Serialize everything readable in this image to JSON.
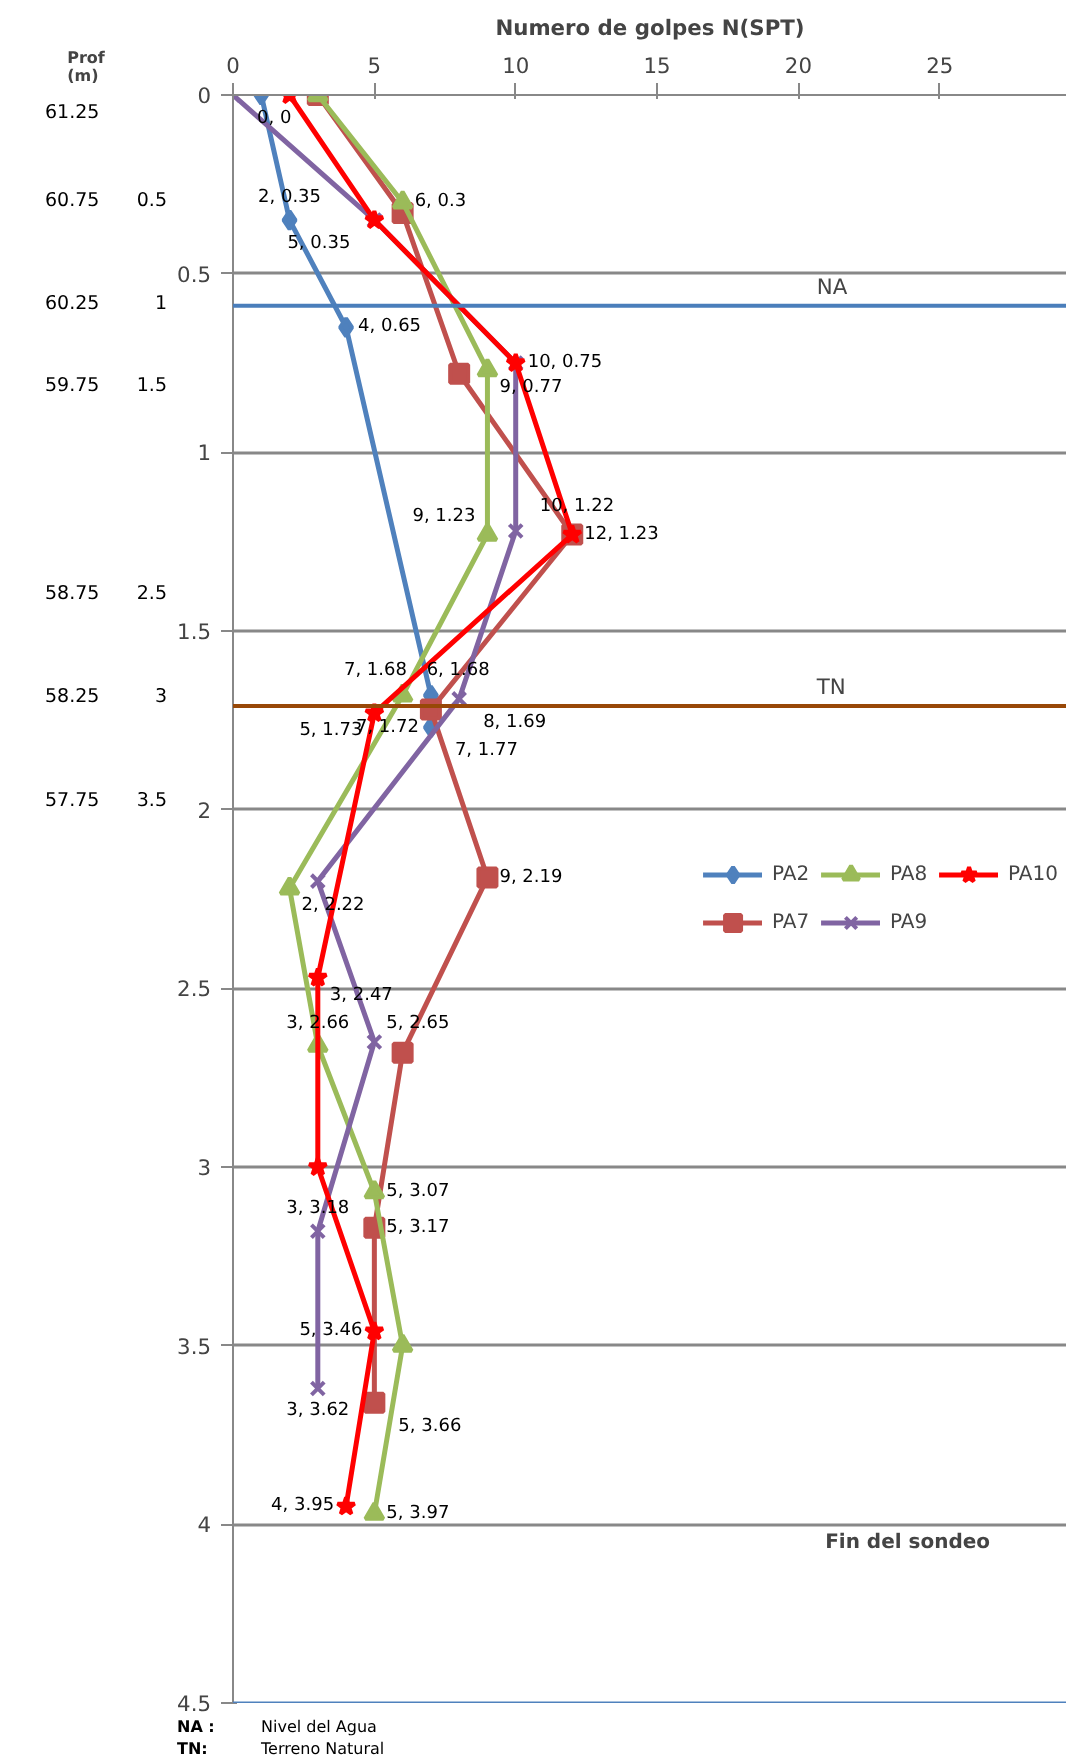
{
  "chart_data": {
    "type": "line",
    "xlabel": "Numero de golpes N(SPT)",
    "ylabel": "Prof\n(m)",
    "xlim": [
      0,
      29.5
    ],
    "xticks": [
      0,
      5,
      10,
      15,
      20,
      25
    ],
    "ylim": [
      4.5,
      0
    ],
    "yticks": [
      0,
      0.5,
      1,
      1.5,
      2,
      2.5,
      3,
      3.5,
      4,
      4.5
    ],
    "grid": "y",
    "legend": "right",
    "line_style": "solid",
    "series": [
      {
        "name": "PA2",
        "color": "#4f81bd",
        "marker": "diamond",
        "x": [
          1,
          2,
          4,
          7,
          7
        ],
        "values": [
          0,
          0.35,
          0.65,
          1.68,
          1.77
        ],
        "value_labels": [
          null,
          "2, 0.35",
          "4, 0.65",
          "7, 1.68",
          "7, 1.77"
        ]
      },
      {
        "name": "PA7",
        "color": "#c0504d",
        "marker": "square",
        "x": [
          3,
          6,
          8,
          12,
          7,
          9,
          6,
          5,
          5
        ],
        "values": [
          0,
          0.33,
          0.78,
          1.23,
          1.72,
          2.19,
          2.68,
          3.17,
          3.66
        ],
        "value_labels": [
          null,
          null,
          null,
          null,
          "7, 1.72",
          "9, 2.19",
          null,
          "5, 3.17",
          "5, 3.66"
        ]
      },
      {
        "name": "PA8",
        "color": "#9bbb59",
        "marker": "triangle",
        "x": [
          3,
          6,
          9,
          9,
          6,
          2,
          3,
          5,
          6,
          5
        ],
        "values": [
          0,
          0.3,
          0.77,
          1.23,
          1.68,
          2.22,
          2.66,
          3.07,
          3.5,
          3.97
        ],
        "value_labels": [
          null,
          "6, 0.3",
          "9, 0.77",
          "9, 1.23",
          "6, 1.68",
          "2, 2.22",
          "3, 2.66",
          "5, 3.07",
          null,
          "5, 3.97"
        ]
      },
      {
        "name": "PA9",
        "color": "#8064a2",
        "marker": "cross",
        "x": [
          0,
          5,
          10,
          10,
          8,
          3,
          5,
          3,
          3
        ],
        "values": [
          0,
          0.35,
          0.75,
          1.22,
          1.69,
          2.2,
          2.65,
          3.18,
          3.62
        ],
        "value_labels": [
          "0, 0",
          null,
          null,
          "10, 1.22",
          "8, 1.69",
          null,
          "5, 2.65",
          "3, 3.18",
          "3, 3.62"
        ]
      },
      {
        "name": "PA10",
        "color": "#ff0000",
        "marker": "star",
        "x": [
          2,
          5,
          10,
          12,
          5,
          3,
          3,
          5,
          4
        ],
        "values": [
          0,
          0.35,
          0.75,
          1.23,
          1.73,
          2.47,
          3.0,
          3.46,
          3.95
        ],
        "value_labels": [
          null,
          "5, 0.35",
          "10, 0.75",
          "12, 1.23",
          "5, 1.73",
          "3, 2.47",
          null,
          "5, 3.46",
          "4, 3.95"
        ]
      }
    ],
    "ref_lines": [
      {
        "axis": "y",
        "value": 0.59,
        "label": "NA",
        "color": "#4a7ebb"
      },
      {
        "axis": "y",
        "value": 1.71,
        "label": "TN",
        "color": "#984807"
      }
    ],
    "annotations": [
      "61.25",
      "60.75",
      "60.25",
      "59.75",
      "58.75",
      "58.25",
      "57.75",
      "0.5",
      "1",
      "1.5",
      "2.5",
      "3",
      "3.5",
      "NA :",
      "Nivel del Agua",
      "TN:",
      "Terreno Natural",
      "Fin del sondeo"
    ]
  }
}
